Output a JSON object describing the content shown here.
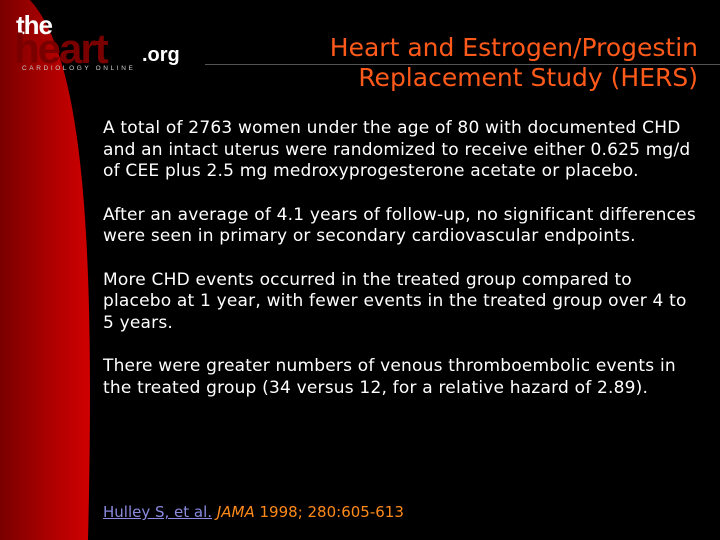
{
  "logo": {
    "the": "the",
    "heart": "heart",
    "org": ".org",
    "tagline": "CARDIOLOGY ONLINE"
  },
  "colors": {
    "background": "#000000",
    "title": "#ff5a1a",
    "body_text": "#ffffff",
    "accent_red": "#b00000",
    "citation": "#ff8a1a",
    "link": "#8a8adf"
  },
  "title": "Heart and Estrogen/Progestin Replacement Study (HERS)",
  "paragraphs": [
    "A total of 2763 women under the age of 80 with documented CHD and an intact uterus were randomized to receive either 0.625 mg/d of CEE plus 2.5 mg medroxyprogesterone acetate or placebo.",
    "After an average of 4.1 years of follow-up, no significant differences were seen in primary or secondary cardiovascular endpoints.",
    "More CHD events occurred in the treated group compared to placebo at 1 year, with fewer events in the treated group over 4 to 5 years.",
    "There were greater numbers of venous thromboembolic events in the treated group (34 versus 12, for a relative hazard of 2.89)."
  ],
  "citation": {
    "authors": "Hulley S, et al.",
    "journal": "JAMA",
    "details": "1998; 280:605-613"
  }
}
